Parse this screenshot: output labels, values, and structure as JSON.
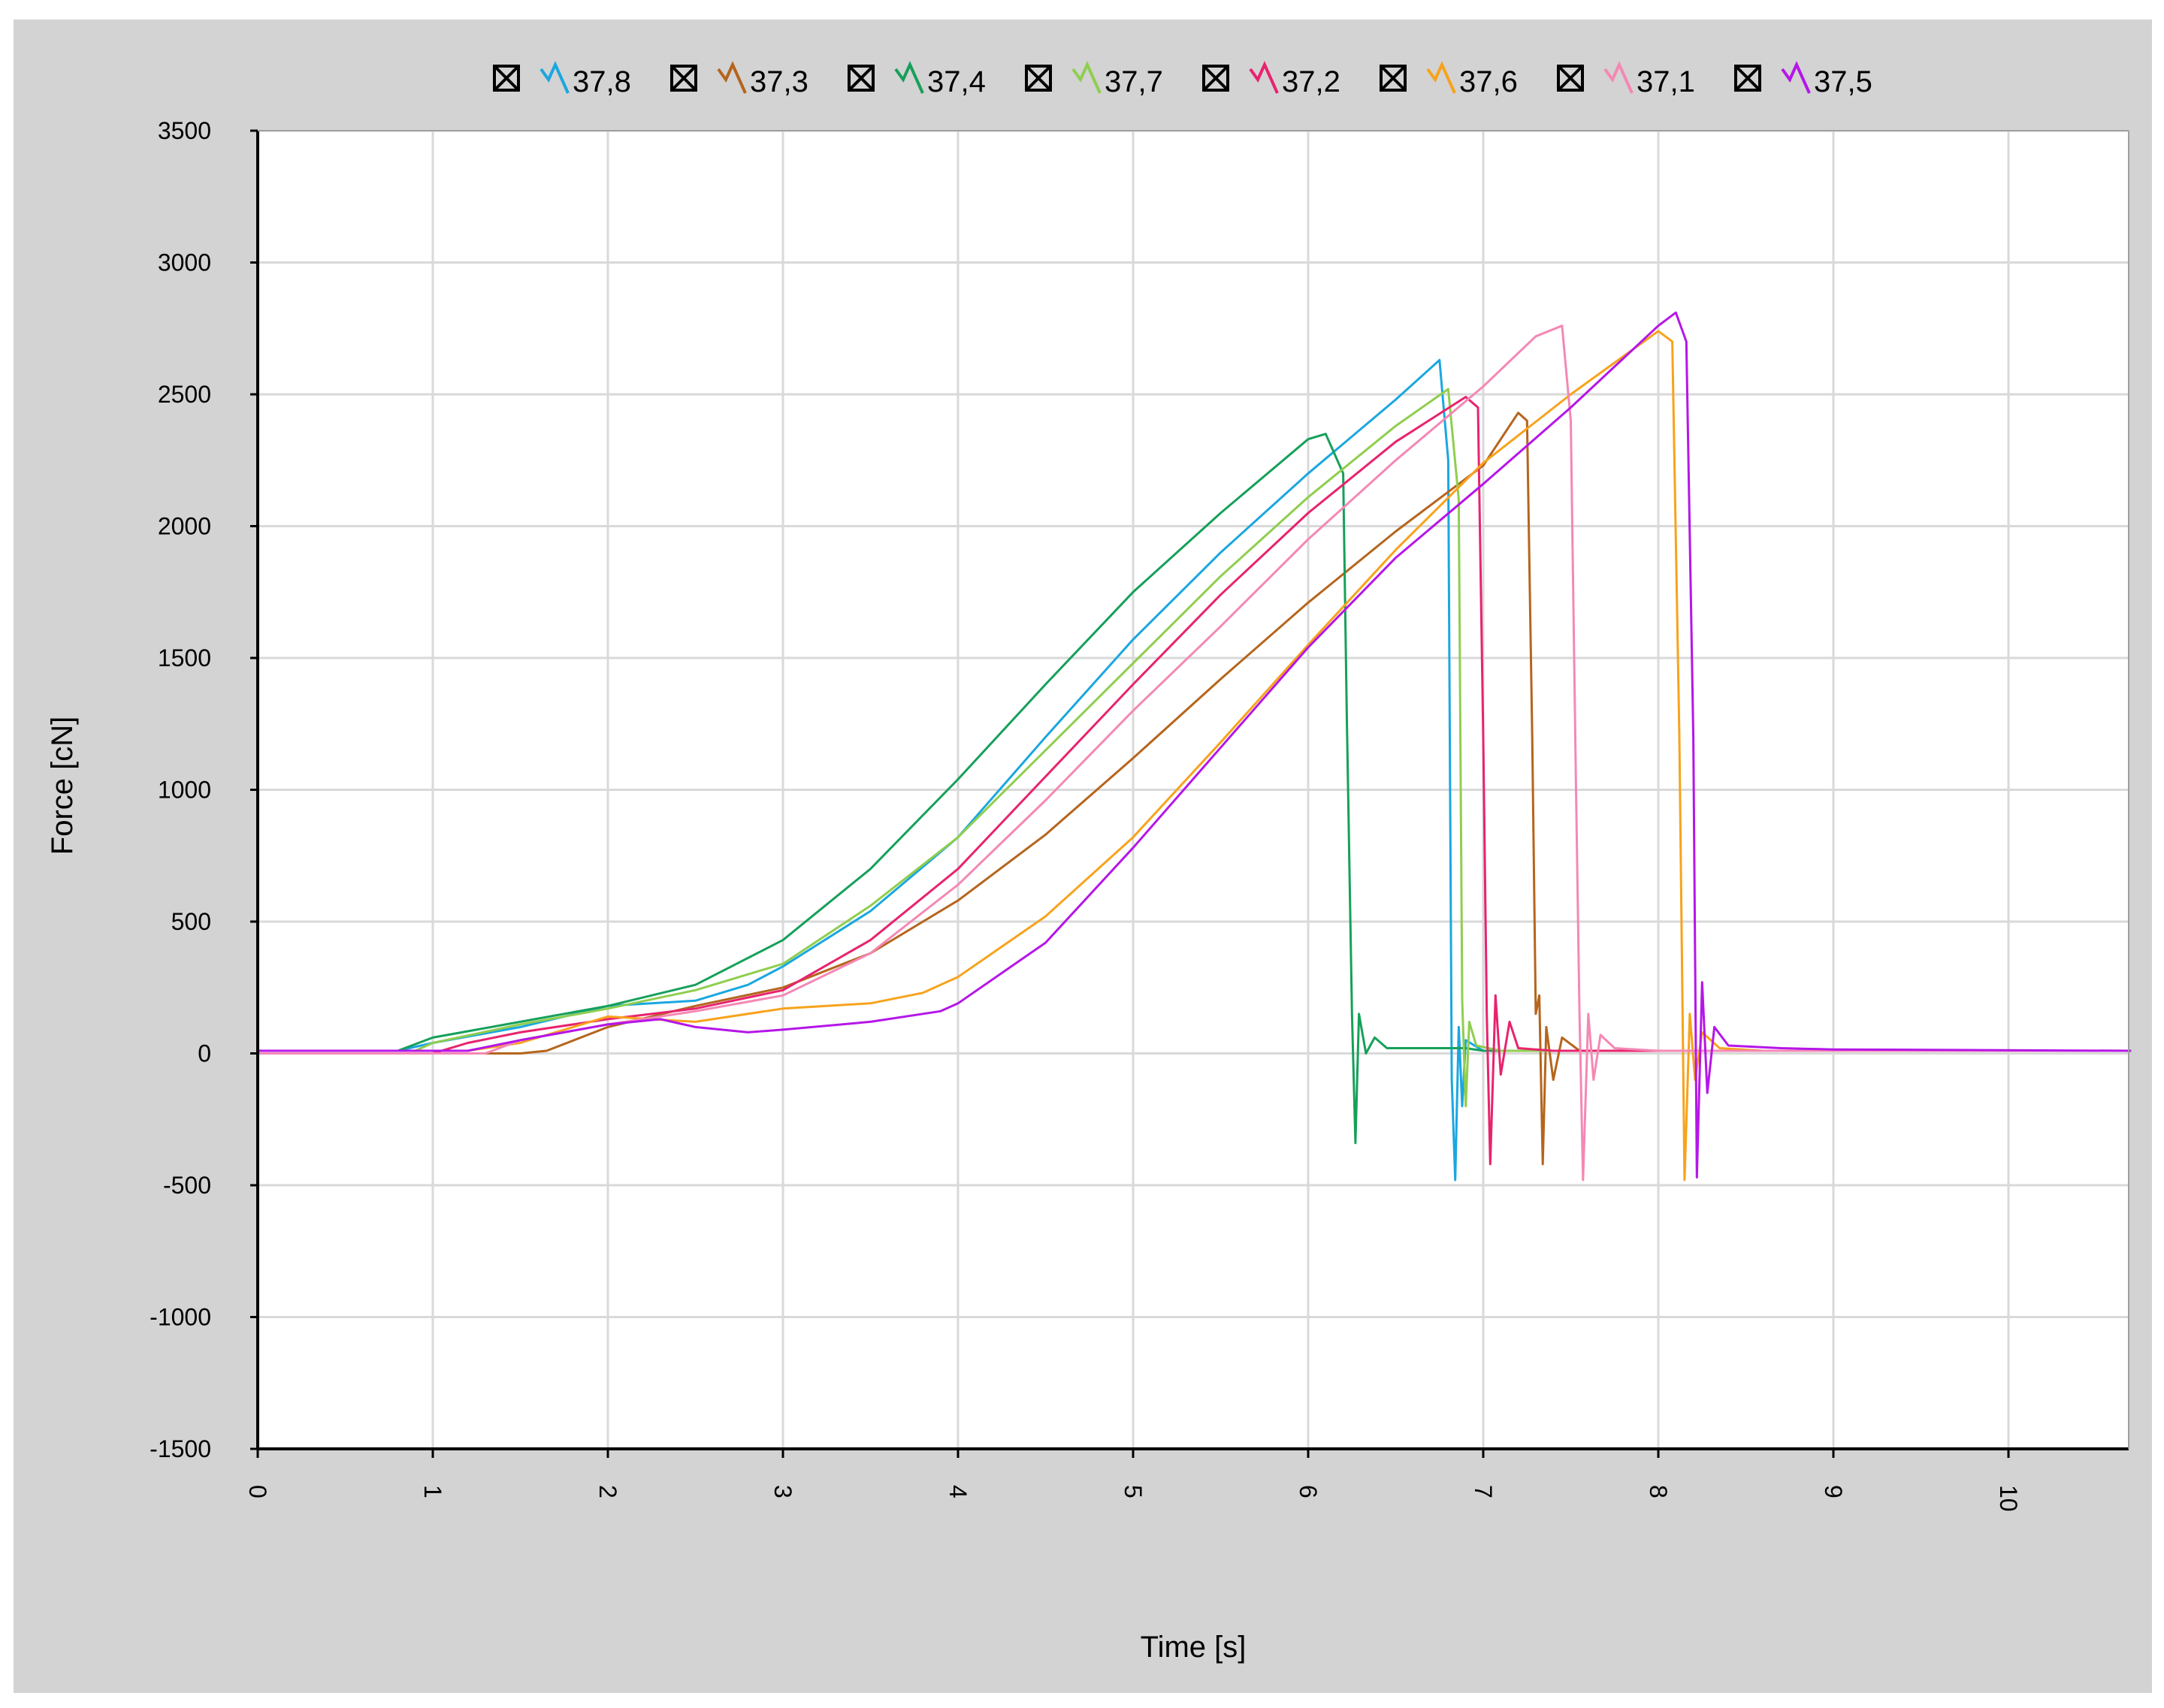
{
  "chart_data": {
    "type": "line",
    "title": "",
    "xlabel": "Time [s]",
    "ylabel": "Force [cN]",
    "xlim": [
      0,
      10.7
    ],
    "ylim": [
      -1500,
      3500
    ],
    "xticks": [
      0,
      1,
      2,
      3,
      4,
      5,
      6,
      7,
      8,
      9,
      10
    ],
    "yticks": [
      3500,
      3000,
      2500,
      2000,
      1500,
      1000,
      500,
      0,
      -500,
      -1000,
      -1500
    ],
    "grid": true,
    "legend_position": "top",
    "series": [
      {
        "name": "37,8",
        "color": "#1aa7e0",
        "points": [
          [
            0,
            10
          ],
          [
            0.8,
            10
          ],
          [
            1,
            40
          ],
          [
            1.5,
            100
          ],
          [
            2,
            180
          ],
          [
            2.5,
            200
          ],
          [
            2.8,
            260
          ],
          [
            3,
            330
          ],
          [
            3.5,
            540
          ],
          [
            4,
            820
          ],
          [
            4.5,
            1200
          ],
          [
            5,
            1570
          ],
          [
            5.5,
            1900
          ],
          [
            6,
            2200
          ],
          [
            6.5,
            2480
          ],
          [
            6.75,
            2630
          ],
          [
            6.8,
            2250
          ],
          [
            6.82,
            -100
          ],
          [
            6.84,
            -480
          ],
          [
            6.86,
            100
          ],
          [
            6.88,
            -200
          ],
          [
            6.9,
            50
          ],
          [
            7,
            10
          ],
          [
            7.5,
            10
          ],
          [
            10.7,
            10
          ]
        ]
      },
      {
        "name": "37,3",
        "color": "#b5651d",
        "points": [
          [
            0,
            0
          ],
          [
            1.5,
            0
          ],
          [
            1.65,
            10
          ],
          [
            2,
            100
          ],
          [
            2.5,
            180
          ],
          [
            3,
            250
          ],
          [
            3.5,
            380
          ],
          [
            4,
            580
          ],
          [
            4.5,
            830
          ],
          [
            5,
            1120
          ],
          [
            5.5,
            1420
          ],
          [
            6,
            1710
          ],
          [
            6.5,
            1980
          ],
          [
            7,
            2230
          ],
          [
            7.2,
            2430
          ],
          [
            7.25,
            2400
          ],
          [
            7.28,
            1200
          ],
          [
            7.3,
            150
          ],
          [
            7.32,
            220
          ],
          [
            7.34,
            -420
          ],
          [
            7.36,
            100
          ],
          [
            7.4,
            -100
          ],
          [
            7.45,
            60
          ],
          [
            7.55,
            10
          ],
          [
            8,
            10
          ],
          [
            10.7,
            10
          ]
        ]
      },
      {
        "name": "37,4",
        "color": "#16a05a",
        "points": [
          [
            0,
            10
          ],
          [
            0.8,
            10
          ],
          [
            1,
            60
          ],
          [
            1.5,
            120
          ],
          [
            2,
            180
          ],
          [
            2.5,
            260
          ],
          [
            3,
            430
          ],
          [
            3.5,
            700
          ],
          [
            4,
            1040
          ],
          [
            4.5,
            1400
          ],
          [
            5,
            1750
          ],
          [
            5.5,
            2050
          ],
          [
            6,
            2330
          ],
          [
            6.1,
            2350
          ],
          [
            6.2,
            2200
          ],
          [
            6.22,
            1300
          ],
          [
            6.25,
            150
          ],
          [
            6.27,
            -340
          ],
          [
            6.29,
            150
          ],
          [
            6.33,
            0
          ],
          [
            6.38,
            60
          ],
          [
            6.45,
            20
          ],
          [
            6.6,
            20
          ],
          [
            6.8,
            20
          ],
          [
            6.9,
            20
          ],
          [
            7.0,
            10
          ],
          [
            10.7,
            10
          ]
        ]
      },
      {
        "name": "37,7",
        "color": "#8fce4f",
        "points": [
          [
            0,
            10
          ],
          [
            0.9,
            10
          ],
          [
            1,
            40
          ],
          [
            1.5,
            110
          ],
          [
            2,
            170
          ],
          [
            2.5,
            240
          ],
          [
            3,
            340
          ],
          [
            3.5,
            560
          ],
          [
            4,
            820
          ],
          [
            4.5,
            1150
          ],
          [
            5,
            1480
          ],
          [
            5.5,
            1810
          ],
          [
            6,
            2110
          ],
          [
            6.5,
            2380
          ],
          [
            6.8,
            2520
          ],
          [
            6.86,
            2100
          ],
          [
            6.88,
            200
          ],
          [
            6.9,
            -200
          ],
          [
            6.92,
            120
          ],
          [
            6.96,
            30
          ],
          [
            7.1,
            10
          ],
          [
            10.7,
            10
          ]
        ]
      },
      {
        "name": "37,2",
        "color": "#e8236e",
        "points": [
          [
            0,
            0
          ],
          [
            1.0,
            0
          ],
          [
            1.2,
            40
          ],
          [
            1.5,
            80
          ],
          [
            2,
            130
          ],
          [
            2.5,
            170
          ],
          [
            3,
            240
          ],
          [
            3.5,
            430
          ],
          [
            4,
            700
          ],
          [
            4.5,
            1050
          ],
          [
            5,
            1400
          ],
          [
            5.5,
            1740
          ],
          [
            6,
            2050
          ],
          [
            6.5,
            2320
          ],
          [
            6.9,
            2490
          ],
          [
            6.97,
            2450
          ],
          [
            7,
            1200
          ],
          [
            7.02,
            150
          ],
          [
            7.04,
            -420
          ],
          [
            7.07,
            220
          ],
          [
            7.1,
            -80
          ],
          [
            7.15,
            120
          ],
          [
            7.2,
            20
          ],
          [
            7.4,
            10
          ],
          [
            10.7,
            10
          ]
        ]
      },
      {
        "name": "37,6",
        "color": "#f7a31c",
        "points": [
          [
            0,
            10
          ],
          [
            1.2,
            10
          ],
          [
            1.5,
            40
          ],
          [
            2,
            140
          ],
          [
            2.5,
            120
          ],
          [
            3,
            170
          ],
          [
            3.5,
            190
          ],
          [
            3.8,
            230
          ],
          [
            4,
            290
          ],
          [
            4.5,
            520
          ],
          [
            5,
            820
          ],
          [
            5.5,
            1180
          ],
          [
            6,
            1550
          ],
          [
            6.5,
            1910
          ],
          [
            7,
            2240
          ],
          [
            7.5,
            2500
          ],
          [
            8,
            2740
          ],
          [
            8.08,
            2700
          ],
          [
            8.12,
            1200
          ],
          [
            8.15,
            -480
          ],
          [
            8.18,
            150
          ],
          [
            8.21,
            -100
          ],
          [
            8.25,
            80
          ],
          [
            8.35,
            20
          ],
          [
            8.6,
            10
          ],
          [
            10.7,
            10
          ]
        ]
      },
      {
        "name": "37,1",
        "color": "#f488b5",
        "points": [
          [
            0,
            0
          ],
          [
            1.3,
            0
          ],
          [
            1.5,
            50
          ],
          [
            2,
            110
          ],
          [
            2.5,
            160
          ],
          [
            3,
            220
          ],
          [
            3.5,
            380
          ],
          [
            4,
            640
          ],
          [
            4.5,
            960
          ],
          [
            5,
            1300
          ],
          [
            5.5,
            1620
          ],
          [
            6,
            1950
          ],
          [
            6.5,
            2250
          ],
          [
            7,
            2530
          ],
          [
            7.3,
            2720
          ],
          [
            7.45,
            2760
          ],
          [
            7.5,
            2400
          ],
          [
            7.53,
            1000
          ],
          [
            7.55,
            150
          ],
          [
            7.57,
            -480
          ],
          [
            7.6,
            150
          ],
          [
            7.63,
            -100
          ],
          [
            7.67,
            70
          ],
          [
            7.75,
            20
          ],
          [
            8,
            10
          ],
          [
            10.7,
            10
          ]
        ]
      },
      {
        "name": "37,5",
        "color": "#b516e8",
        "points": [
          [
            0,
            10
          ],
          [
            1.2,
            10
          ],
          [
            1.5,
            50
          ],
          [
            2,
            110
          ],
          [
            2.3,
            130
          ],
          [
            2.5,
            100
          ],
          [
            2.8,
            80
          ],
          [
            3,
            90
          ],
          [
            3.5,
            120
          ],
          [
            3.9,
            160
          ],
          [
            4,
            190
          ],
          [
            4.5,
            420
          ],
          [
            5,
            780
          ],
          [
            5.5,
            1160
          ],
          [
            6,
            1540
          ],
          [
            6.5,
            1880
          ],
          [
            7,
            2160
          ],
          [
            7.5,
            2450
          ],
          [
            8,
            2760
          ],
          [
            8.1,
            2810
          ],
          [
            8.16,
            2700
          ],
          [
            8.2,
            1200
          ],
          [
            8.22,
            -470
          ],
          [
            8.25,
            270
          ],
          [
            8.28,
            -150
          ],
          [
            8.32,
            100
          ],
          [
            8.4,
            30
          ],
          [
            8.7,
            20
          ],
          [
            9,
            15
          ],
          [
            10.7,
            10
          ]
        ]
      }
    ]
  }
}
